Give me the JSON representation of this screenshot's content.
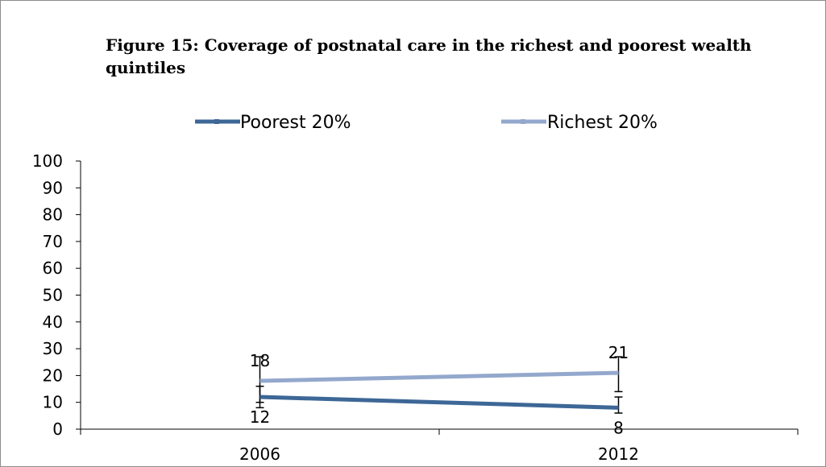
{
  "chart_data": {
    "type": "line",
    "title_lead": "Figure 15",
    "title_rest": ": Coverage of postnatal care in the richest and poorest wealth quintiles",
    "categories": [
      "2006",
      "2012"
    ],
    "ylim": [
      0,
      100
    ],
    "yticks": [
      0,
      10,
      20,
      30,
      40,
      50,
      60,
      70,
      80,
      90,
      100
    ],
    "grid": false,
    "legend_position": "top",
    "series": [
      {
        "name": "Poorest 20%",
        "color": "#3d6796",
        "values": [
          12,
          8
        ],
        "labels": [
          "12",
          "8"
        ],
        "error_low": [
          8,
          6
        ],
        "error_high": [
          16,
          12
        ]
      },
      {
        "name": "Richest 20%",
        "color": "#93a8cc",
        "values": [
          18,
          21
        ],
        "labels": [
          "18",
          "21"
        ],
        "error_low": [
          10,
          14
        ],
        "error_high": [
          27,
          27
        ]
      }
    ]
  }
}
